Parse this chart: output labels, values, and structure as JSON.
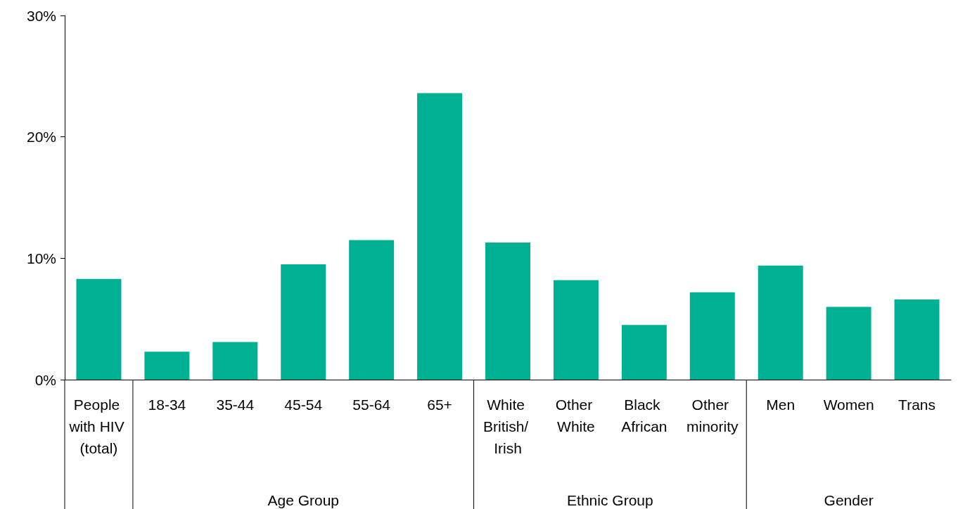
{
  "chart_data": {
    "type": "bar",
    "categories": [
      "People with HIV (total)",
      "18-34",
      "35-44",
      "45-54",
      "55-64",
      "65+",
      "White British/ Irish",
      "Other White",
      "Black African",
      "Other minority",
      "Men",
      "Women",
      "Trans"
    ],
    "values": [
      8.3,
      2.3,
      3.1,
      9.5,
      11.5,
      23.6,
      11.3,
      8.2,
      4.5,
      7.2,
      9.4,
      6.0,
      6.6
    ],
    "color": "#00b092",
    "ylim": [
      0,
      30
    ],
    "yticks": [
      {
        "value": 0,
        "label": "0%"
      },
      {
        "value": 10,
        "label": "10%"
      },
      {
        "value": 20,
        "label": "20%"
      },
      {
        "value": 30,
        "label": "30%"
      }
    ],
    "grid": false,
    "annotations": [
      "Age Group",
      "Ethnic Group",
      "Gender"
    ]
  }
}
